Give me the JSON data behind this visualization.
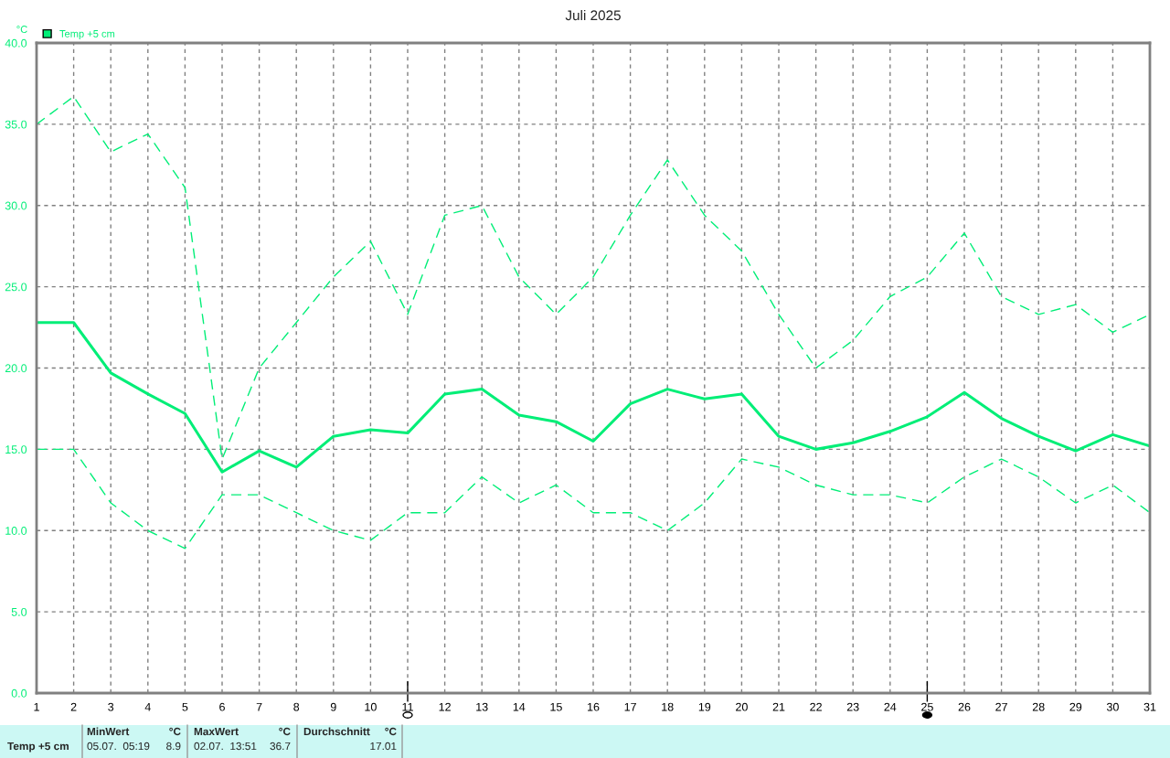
{
  "chart_data": {
    "type": "line",
    "title": "Juli 2025",
    "ylabel": "°C",
    "x": [
      1,
      2,
      3,
      4,
      5,
      6,
      7,
      8,
      9,
      10,
      11,
      12,
      13,
      14,
      15,
      16,
      17,
      18,
      19,
      20,
      21,
      22,
      23,
      24,
      25,
      26,
      27,
      28,
      29,
      30,
      31
    ],
    "series": [
      {
        "name": "Temp +5 cm",
        "color": "#00ee77",
        "line_style": "solid",
        "values": [
          22.8,
          22.8,
          19.7,
          18.4,
          17.2,
          13.6,
          14.9,
          13.9,
          15.8,
          16.2,
          16.0,
          18.4,
          18.7,
          17.1,
          16.7,
          15.5,
          17.8,
          18.7,
          18.1,
          18.4,
          15.8,
          15.0,
          15.4,
          16.1,
          17.0,
          18.5,
          16.9,
          15.8,
          14.9,
          15.9,
          15.2
        ]
      },
      {
        "color": "#00ee77",
        "line_style": "dashed",
        "values": [
          35.0,
          36.7,
          33.3,
          34.4,
          31.1,
          14.4,
          20.0,
          22.8,
          25.6,
          27.8,
          23.3,
          29.4,
          30.0,
          25.6,
          23.3,
          25.6,
          29.4,
          32.8,
          29.4,
          27.2,
          23.3,
          20.0,
          21.7,
          24.4,
          25.6,
          28.3,
          24.4,
          23.3,
          23.9,
          22.2,
          23.3
        ]
      },
      {
        "color": "#00ee77",
        "line_style": "dashed",
        "values": [
          15.0,
          15.0,
          11.7,
          10.0,
          8.9,
          12.2,
          12.2,
          11.1,
          10.0,
          9.4,
          11.1,
          11.1,
          13.3,
          11.7,
          12.8,
          11.1,
          11.1,
          10.0,
          11.7,
          14.4,
          13.9,
          12.8,
          12.2,
          12.2,
          11.7,
          13.3,
          14.4,
          13.3,
          11.7,
          12.8,
          11.1
        ]
      }
    ],
    "xlim": [
      1,
      31
    ],
    "xticks": [
      1,
      2,
      3,
      4,
      5,
      6,
      7,
      8,
      9,
      10,
      11,
      12,
      13,
      14,
      15,
      16,
      17,
      18,
      19,
      20,
      21,
      22,
      23,
      24,
      25,
      26,
      27,
      28,
      29,
      30,
      31
    ],
    "ylim": [
      0,
      40
    ],
    "yticks": [
      {
        "value": 0,
        "label": "0.0"
      },
      {
        "value": 5,
        "label": "5.0"
      },
      {
        "value": 10,
        "label": "10.0"
      },
      {
        "value": 15,
        "label": "15.0"
      },
      {
        "value": 20,
        "label": "20.0"
      },
      {
        "value": 25,
        "label": "25.0"
      },
      {
        "value": 30,
        "label": "30.0"
      },
      {
        "value": 35,
        "label": "35.0"
      },
      {
        "value": 40,
        "label": "40.0"
      }
    ],
    "grid": true,
    "legend": "top left",
    "marker": "none",
    "annotations": [
      "Temp +5 cm",
      "MinWert",
      "°C",
      "05.07.  05:19",
      "8.9",
      "MaxWert",
      "°C",
      "02.07.  13:51",
      "36.7",
      "Durchschnitt",
      "°C",
      "17.01"
    ]
  }
}
